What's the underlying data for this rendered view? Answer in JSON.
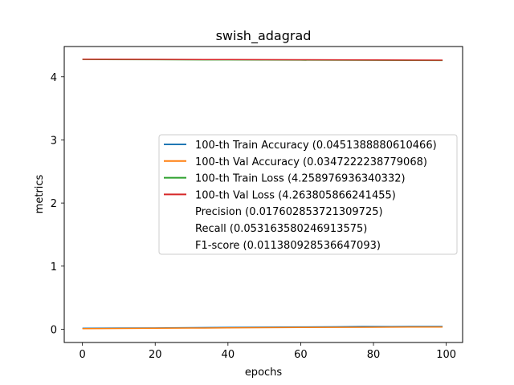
{
  "chart_data": {
    "type": "line",
    "title": "swish_adagrad",
    "xlabel": "epochs",
    "ylabel": "metrics",
    "xlim": [
      -5,
      104.5
    ],
    "ylim": [
      -0.21,
      4.48
    ],
    "x_ticks": [
      0,
      20,
      40,
      60,
      80,
      100
    ],
    "y_ticks": [
      0,
      1,
      2,
      3,
      4
    ],
    "legend_position": "center-right",
    "grid": false,
    "series": [
      {
        "name": "100-th Train Accuracy (0.0451388880610466)",
        "color": "#1f77b4",
        "x": [
          0,
          10,
          20,
          30,
          40,
          50,
          60,
          70,
          77,
          85,
          90,
          99
        ],
        "y": [
          0.015,
          0.018,
          0.02,
          0.025,
          0.03,
          0.033,
          0.036,
          0.04,
          0.045,
          0.042,
          0.044,
          0.045
        ]
      },
      {
        "name": "100-th Val Accuracy (0.0347222238779068)",
        "color": "#ff7f0e",
        "x": [
          0,
          10,
          20,
          30,
          40,
          50,
          60,
          70,
          80,
          90,
          99
        ],
        "y": [
          0.01,
          0.012,
          0.015,
          0.018,
          0.022,
          0.025,
          0.028,
          0.03,
          0.032,
          0.034,
          0.035
        ]
      },
      {
        "name": "100-th Train Loss (4.258976936340332)",
        "color": "#2ca02c",
        "x": [
          0,
          20,
          40,
          60,
          80,
          99
        ],
        "y": [
          4.275,
          4.272,
          4.268,
          4.265,
          4.262,
          4.259
        ]
      },
      {
        "name": "100-th Val Loss (4.263805866241455)",
        "color": "#d62728",
        "x": [
          0,
          20,
          40,
          60,
          80,
          99
        ],
        "y": [
          4.278,
          4.276,
          4.273,
          4.27,
          4.267,
          4.264
        ]
      }
    ],
    "legend_extra": [
      "Precision (0.017602853721309725)",
      "Recall (0.053163580246913575)",
      "F1-score (0.011380928536647093)"
    ]
  }
}
